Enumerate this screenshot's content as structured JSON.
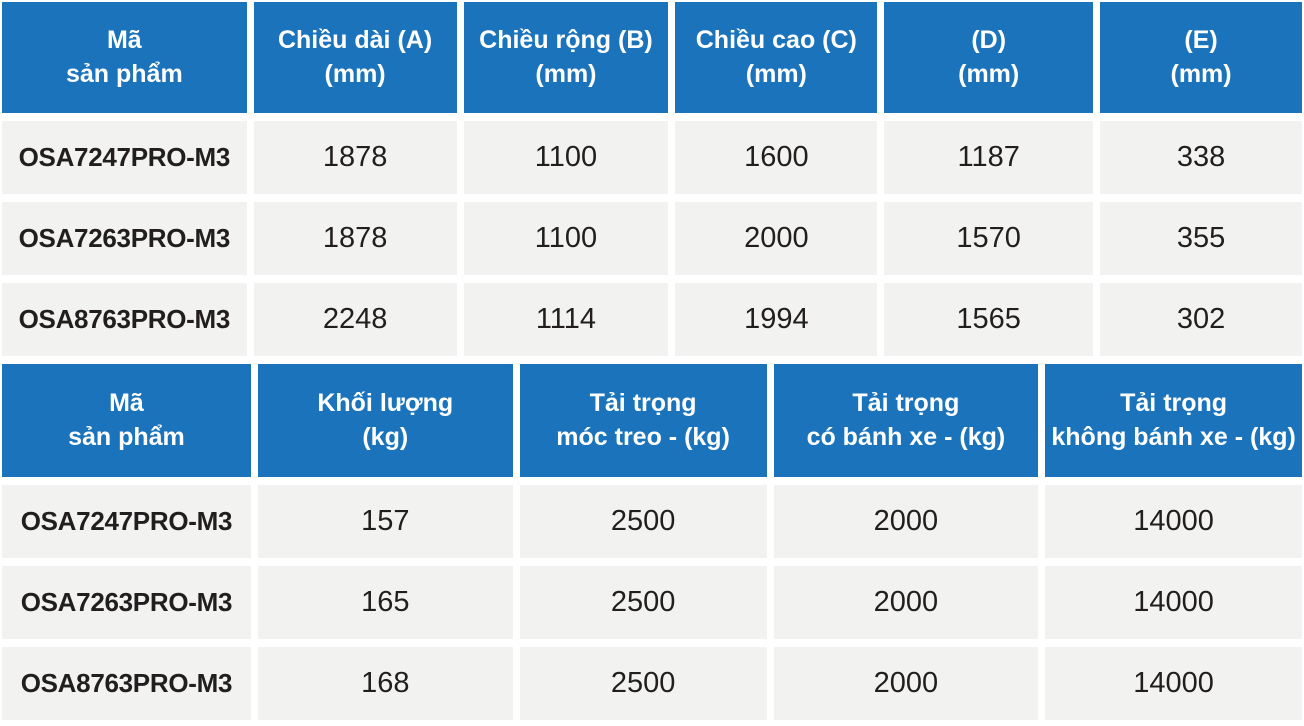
{
  "colors": {
    "header_bg": "#1b74bb",
    "header_text": "#ffffff",
    "cell_bg": "#f2f2f0",
    "cell_text": "#221e1f",
    "page_bg": "#ffffff"
  },
  "table1": {
    "headers": [
      {
        "line1": "Mã",
        "line2": "sản phẩm"
      },
      {
        "line1": "Chiều dài (A)",
        "line2": "(mm)"
      },
      {
        "line1": "Chiều rộng (B)",
        "line2": "(mm)"
      },
      {
        "line1": "Chiều cao (C)",
        "line2": "(mm)"
      },
      {
        "line1": "(D)",
        "line2": "(mm)"
      },
      {
        "line1": "(E)",
        "line2": "(mm)"
      }
    ],
    "rows": [
      {
        "code": "OSA7247PRO-M3",
        "values": [
          "1878",
          "1100",
          "1600",
          "1187",
          "338"
        ]
      },
      {
        "code": "OSA7263PRO-M3",
        "values": [
          "1878",
          "1100",
          "2000",
          "1570",
          "355"
        ]
      },
      {
        "code": "OSA8763PRO-M3",
        "values": [
          "2248",
          "1114",
          "1994",
          "1565",
          "302"
        ]
      }
    ]
  },
  "table2": {
    "headers": [
      {
        "line1": "Mã",
        "line2": "sản phẩm"
      },
      {
        "line1": "Khối lượng",
        "line2": "(kg)"
      },
      {
        "line1": "Tải trọng",
        "line2": "móc treo - (kg)"
      },
      {
        "line1": "Tải trọng",
        "line2": "có bánh xe - (kg)"
      },
      {
        "line1": "Tải trọng",
        "line2": "không bánh xe - (kg)"
      }
    ],
    "rows": [
      {
        "code": "OSA7247PRO-M3",
        "values": [
          "157",
          "2500",
          "2000",
          "14000"
        ]
      },
      {
        "code": "OSA7263PRO-M3",
        "values": [
          "165",
          "2500",
          "2000",
          "14000"
        ]
      },
      {
        "code": "OSA8763PRO-M3",
        "values": [
          "168",
          "2500",
          "2000",
          "14000"
        ]
      }
    ]
  }
}
